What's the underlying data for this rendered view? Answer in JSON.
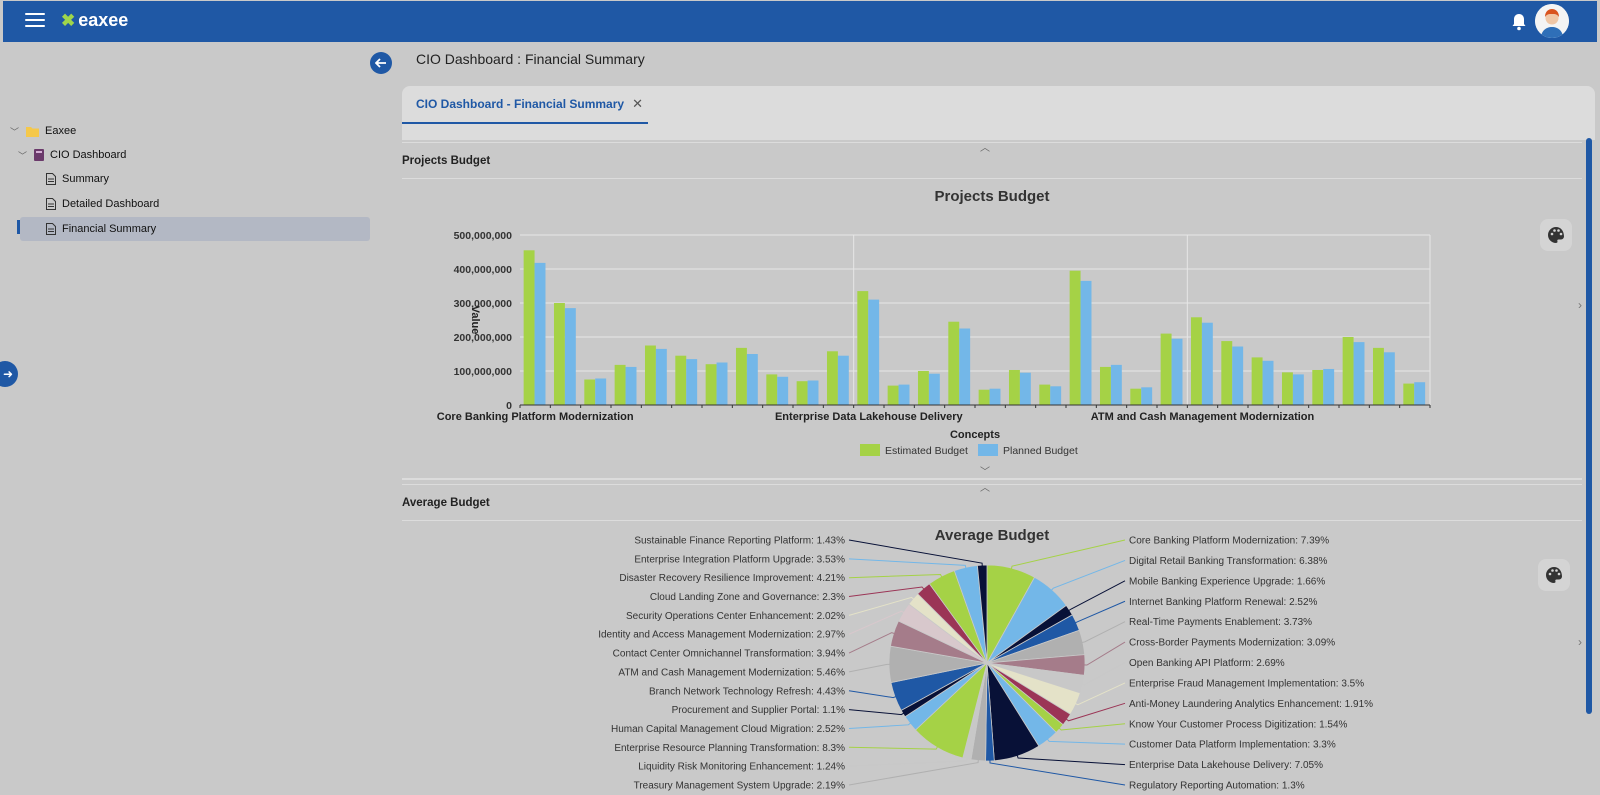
{
  "app": {
    "brand": "eaxee"
  },
  "sidebar": {
    "items": [
      {
        "label": "Eaxee"
      },
      {
        "label": "CIO Dashboard"
      },
      {
        "label": "Summary"
      },
      {
        "label": "Detailed Dashboard"
      },
      {
        "label": "Financial Summary"
      }
    ]
  },
  "header": {
    "title": "CIO Dashboard : Financial Summary"
  },
  "tabs": [
    {
      "label": "CIO Dashboard - Financial Summary"
    }
  ],
  "panels": {
    "projects": {
      "title": "Projects Budget"
    },
    "average": {
      "title": "Average Budget"
    }
  },
  "colors": {
    "accent": "#1f58a5",
    "estimated": "#a5d246",
    "planned": "#73b7e8"
  },
  "chart_data": [
    {
      "type": "bar",
      "title": "Projects Budget",
      "xlabel": "Concepts",
      "ylabel": "Value",
      "ylim": [
        0,
        500000000
      ],
      "yticks": [
        "0",
        "100,000,000",
        "200,000,000",
        "300,000,000",
        "400,000,000",
        "500,000,000"
      ],
      "category_labels": [
        {
          "index": 0,
          "label": "Core Banking Platform Modernization"
        },
        {
          "index": 11,
          "label": "Enterprise Data Lakehouse Delivery"
        },
        {
          "index": 22,
          "label": "ATM and Cash Management Modernization"
        }
      ],
      "series": [
        {
          "name": "Estimated Budget",
          "values": [
            455000000,
            300000000,
            75000000,
            118000000,
            175000000,
            145000000,
            120000000,
            168000000,
            90000000,
            70000000,
            158000000,
            335000000,
            57000000,
            100000000,
            245000000,
            45000000,
            103000000,
            60000000,
            395000000,
            112000000,
            48000000,
            210000000,
            258000000,
            188000000,
            140000000,
            96000000,
            103000000,
            200000000,
            168000000,
            63000000
          ]
        },
        {
          "name": "Planned Budget",
          "values": [
            418000000,
            285000000,
            78000000,
            112000000,
            165000000,
            135000000,
            125000000,
            150000000,
            83000000,
            72000000,
            145000000,
            310000000,
            60000000,
            92000000,
            225000000,
            48000000,
            95000000,
            55000000,
            365000000,
            118000000,
            52000000,
            195000000,
            242000000,
            172000000,
            130000000,
            90000000,
            106000000,
            185000000,
            155000000,
            67000000
          ]
        }
      ],
      "legend": "bottom"
    },
    {
      "type": "pie",
      "title": "Average Budget",
      "slices": [
        {
          "label": "Core Banking Platform Modernization: 7.39%",
          "value": 7.39,
          "color": "#a5d246"
        },
        {
          "label": "Digital Retail Banking Transformation: 6.38%",
          "value": 6.38,
          "color": "#73b7e8"
        },
        {
          "label": "Mobile Banking Experience Upgrade: 1.66%",
          "value": 1.66,
          "color": "#081137"
        },
        {
          "label": "Internet Banking Platform Renewal: 2.52%",
          "value": 2.52,
          "color": "#1f58a5"
        },
        {
          "label": "Real-Time Payments Enablement: 3.73%",
          "value": 3.73,
          "color": "#b0b0b0"
        },
        {
          "label": "Cross-Border Payments Modernization: 3.09%",
          "value": 3.09,
          "color": "#a57c8a"
        },
        {
          "label": "Open Banking API Platform: 2.69%",
          "value": 2.69,
          "color": "#c8c8c8"
        },
        {
          "label": "Enterprise Fraud Management Implementation: 3.5%",
          "value": 3.5,
          "color": "#e4e2c8"
        },
        {
          "label": "Anti-Money Laundering Analytics Enhancement: 1.91%",
          "value": 1.91,
          "color": "#9b3556"
        },
        {
          "label": "Know Your Customer Process Digitization: 1.54%",
          "value": 1.54,
          "color": "#a5d246"
        },
        {
          "label": "Customer Data Platform Implementation: 3.3%",
          "value": 3.3,
          "color": "#73b7e8"
        },
        {
          "label": "Enterprise Data Lakehouse Delivery: 7.05%",
          "value": 7.05,
          "color": "#081137"
        },
        {
          "label": "Regulatory Reporting Automation: 1.3%",
          "value": 1.3,
          "color": "#1f58a5"
        },
        {
          "label": "Treasury Management System Upgrade: 2.19%",
          "value": 2.19,
          "color": "#b0b0b0"
        },
        {
          "label": "Liquidity Risk Monitoring Enhancement: 1.24%",
          "value": 1.24,
          "color": "#c8c8c8"
        },
        {
          "label": "Enterprise Resource Planning Transformation: 8.3%",
          "value": 8.3,
          "color": "#a5d246"
        },
        {
          "label": "Human Capital Management Cloud Migration: 2.52%",
          "value": 2.52,
          "color": "#73b7e8"
        },
        {
          "label": "Procurement and Supplier Portal: 1.1%",
          "value": 1.1,
          "color": "#081137"
        },
        {
          "label": "Branch Network Technology Refresh: 4.43%",
          "value": 4.43,
          "color": "#1f58a5"
        },
        {
          "label": "ATM and Cash Management Modernization: 5.46%",
          "value": 5.46,
          "color": "#b0b0b0"
        },
        {
          "label": "Contact Center Omnichannel Transformation: 3.94%",
          "value": 3.94,
          "color": "#a57c8a"
        },
        {
          "label": "Identity and Access Management Modernization: 2.97%",
          "value": 2.97,
          "color": "#d8c8cc"
        },
        {
          "label": "Security Operations Center Enhancement: 2.02%",
          "value": 2.02,
          "color": "#e4e2c8"
        },
        {
          "label": "Cloud Landing Zone and Governance: 2.3%",
          "value": 2.3,
          "color": "#9b3556"
        },
        {
          "label": "Disaster Recovery Resilience Improvement: 4.21%",
          "value": 4.21,
          "color": "#a5d246"
        },
        {
          "label": "Enterprise Integration Platform Upgrade: 3.53%",
          "value": 3.53,
          "color": "#73b7e8"
        },
        {
          "label": "Sustainable Finance Reporting Platform: 1.43%",
          "value": 1.43,
          "color": "#081137"
        }
      ]
    }
  ]
}
